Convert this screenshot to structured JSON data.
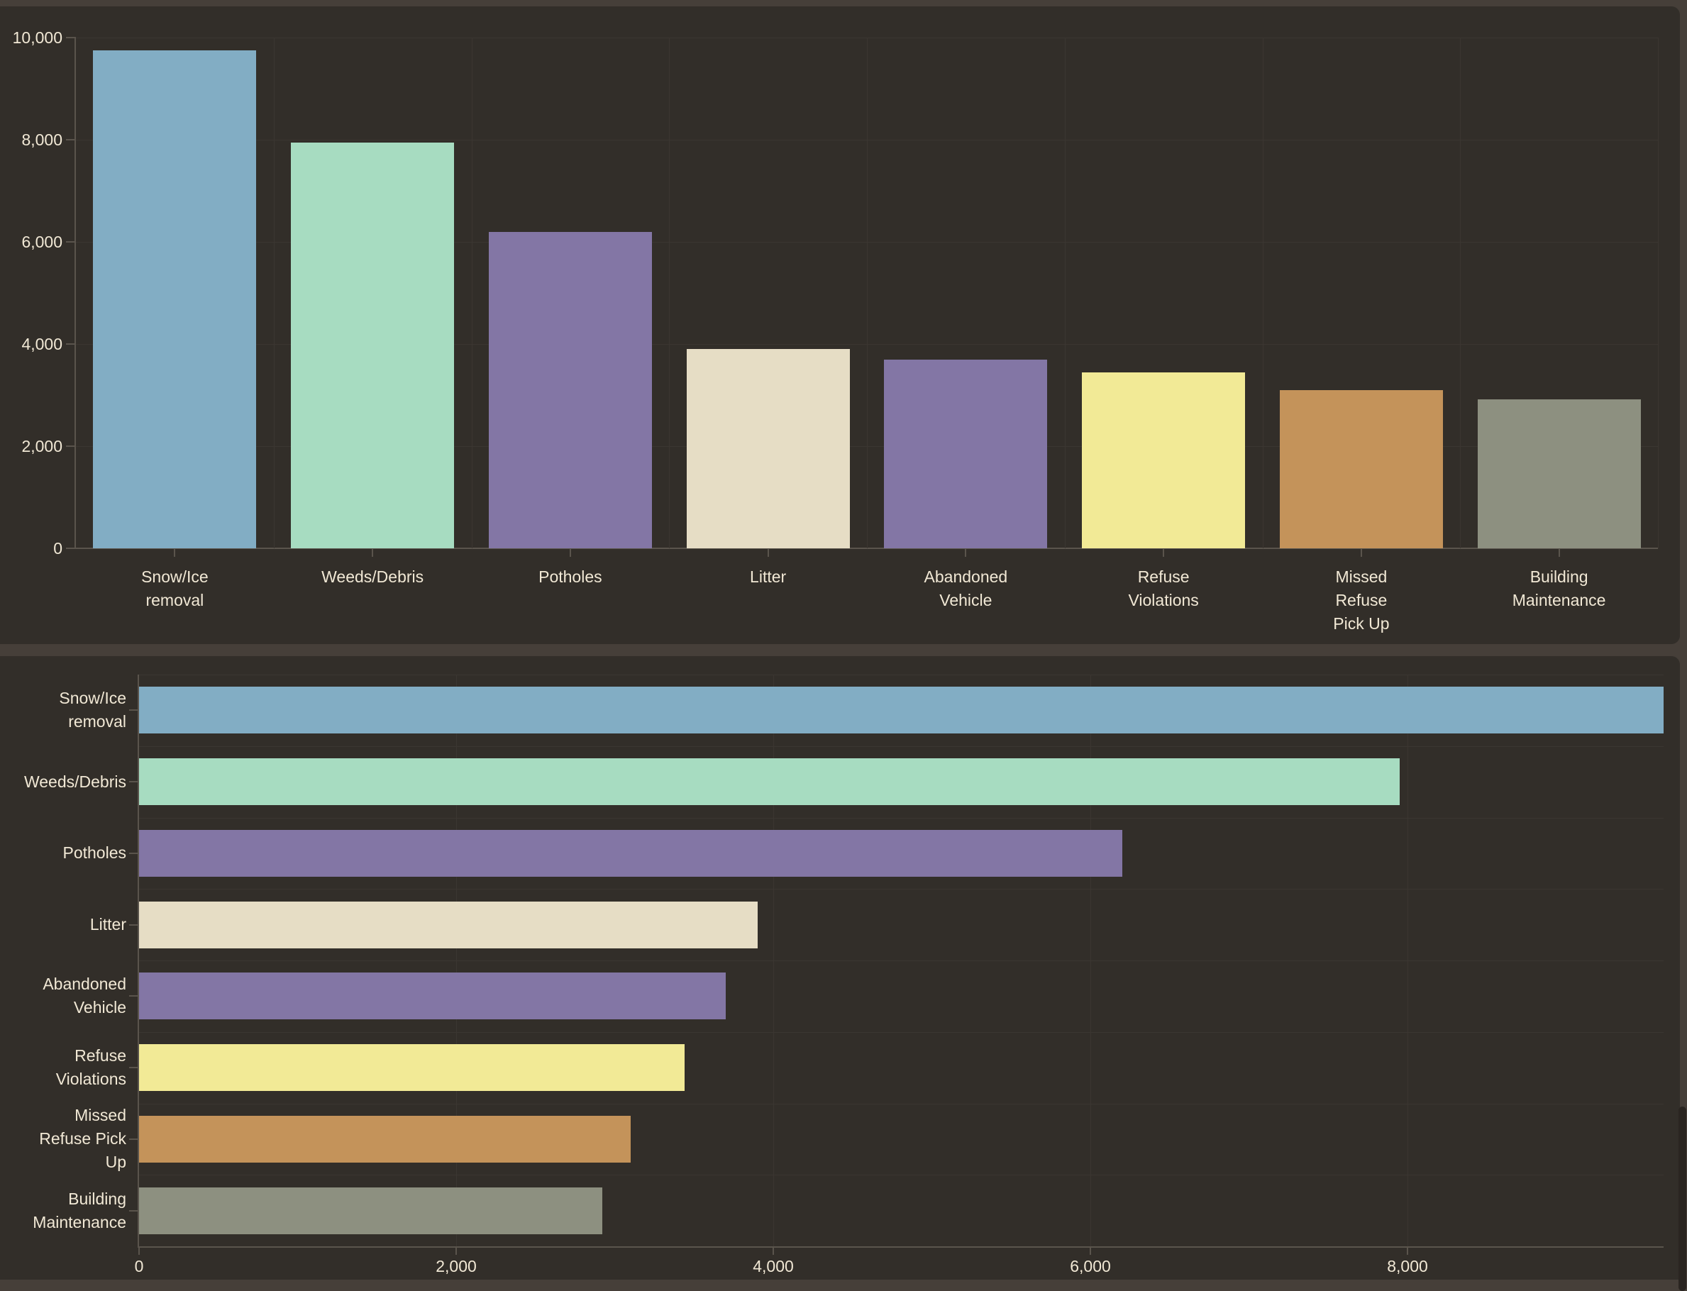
{
  "page": {
    "background": "#463F39",
    "panel_background": "#322E29",
    "grid_color": "#3B3631",
    "axis_color": "#5A544C",
    "text_color": "#F1E8D5",
    "scrollbar_thumb_color": "#2A2521"
  },
  "chart_data": [
    {
      "type": "bar",
      "orientation": "vertical",
      "title": "",
      "xlabel": "",
      "ylabel": "",
      "categories": [
        "Snow/Ice removal",
        "Weeds/Debris",
        "Potholes",
        "Litter",
        "Abandoned Vehicle",
        "Refuse Violations",
        "Missed Refuse Pick Up",
        "Building Maintenance"
      ],
      "category_label_lines": [
        [
          "Snow/Ice",
          "removal"
        ],
        [
          "Weeds/Debris"
        ],
        [
          "Potholes"
        ],
        [
          "Litter"
        ],
        [
          "Abandoned",
          "Vehicle"
        ],
        [
          "Refuse",
          "Violations"
        ],
        [
          "Missed",
          "Refuse",
          "Pick Up"
        ],
        [
          "Building",
          "Maintenance"
        ]
      ],
      "values": [
        9750,
        7950,
        6200,
        3900,
        3700,
        3440,
        3100,
        2920
      ],
      "bar_colors": [
        "#82ADC4",
        "#A7DCC1",
        "#8376A5",
        "#E6DDC5",
        "#8376A5",
        "#F2EA96",
        "#C4935A",
        "#8D9080"
      ],
      "ylim": [
        0,
        10000
      ],
      "yticks": [
        0,
        2000,
        4000,
        6000,
        8000,
        10000
      ],
      "ytick_labels": [
        "0",
        "2,000",
        "4,000",
        "6,000",
        "8,000",
        "10,000"
      ],
      "grid": "on",
      "legend": "none"
    },
    {
      "type": "bar",
      "orientation": "horizontal",
      "title": "",
      "xlabel": "",
      "ylabel": "",
      "categories": [
        "Snow/Ice removal",
        "Weeds/Debris",
        "Potholes",
        "Litter",
        "Abandoned Vehicle",
        "Refuse Violations",
        "Missed Refuse Pick Up",
        "Building Maintenance"
      ],
      "category_label_lines": [
        [
          "Snow/Ice",
          "removal"
        ],
        [
          "Weeds/Debris"
        ],
        [
          "Potholes"
        ],
        [
          "Litter"
        ],
        [
          "Abandoned",
          "Vehicle"
        ],
        [
          "Refuse",
          "Violations"
        ],
        [
          "Missed",
          "Refuse Pick",
          "Up"
        ],
        [
          "Building",
          "Maintenance"
        ]
      ],
      "values": [
        9750,
        7950,
        6200,
        3900,
        3700,
        3440,
        3100,
        2920
      ],
      "bar_colors": [
        "#82ADC4",
        "#A7DCC1",
        "#8376A5",
        "#E6DDC5",
        "#8376A5",
        "#F2EA96",
        "#C4935A",
        "#8D9080"
      ],
      "xlim": [
        0,
        9750
      ],
      "xticks": [
        0,
        2000,
        4000,
        6000,
        8000
      ],
      "xtick_labels": [
        "0",
        "2,000",
        "4,000",
        "6,000",
        "8,000"
      ],
      "grid": "on",
      "legend": "none"
    }
  ]
}
